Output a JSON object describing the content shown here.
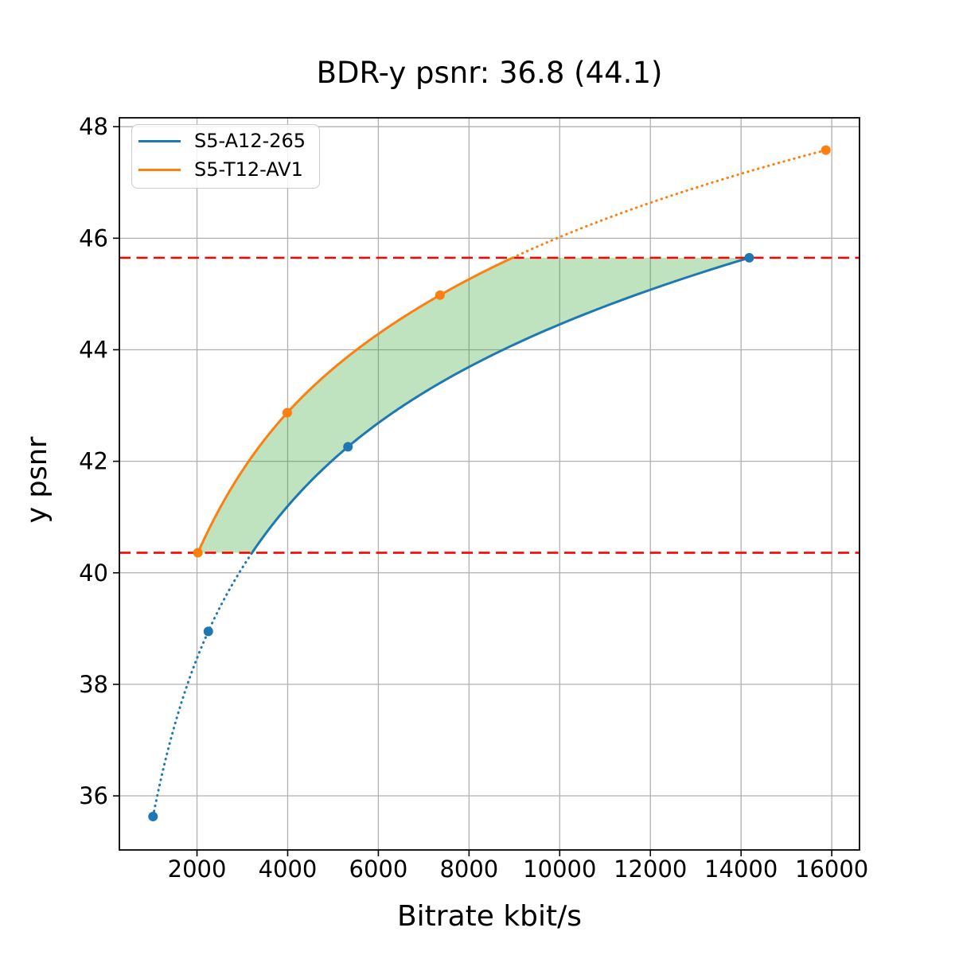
{
  "chart_data": {
    "type": "line",
    "title": "BDR-y psnr: 36.8 (44.1)",
    "xlabel": "Bitrate kbit/s",
    "ylabel": "y psnr",
    "xlim": [
      288,
      16612
    ],
    "ylim": [
      35.03,
      48.16
    ],
    "xticks": [
      2000,
      4000,
      6000,
      8000,
      10000,
      12000,
      14000,
      16000
    ],
    "yticks": [
      36,
      38,
      40,
      42,
      44,
      46,
      48
    ],
    "grid": true,
    "grid_color": "#b0b0b0",
    "background_color": "#ffffff",
    "legend_position": "upper-left",
    "series": [
      {
        "name": "S5-A12-265",
        "color": "#1f77b4",
        "marker": "circle",
        "x": [
          1030,
          2250,
          5330,
          14180
        ],
        "y": [
          35.63,
          38.95,
          42.26,
          45.65
        ]
      },
      {
        "name": "S5-T12-AV1",
        "color": "#ff7f0e",
        "marker": "circle",
        "x": [
          2020,
          3990,
          7360,
          15870
        ],
        "y": [
          40.36,
          42.87,
          44.98,
          47.58
        ]
      }
    ],
    "line_style_rule": "solid inside overlap psnr range, dotted outside",
    "interpolation": "monotone cubic over log bitrate",
    "ref_lines": {
      "values": [
        40.36,
        45.65
      ],
      "color": "#ff0000",
      "style": "dashed"
    },
    "shaded_region": {
      "between": [
        "S5-T12-AV1",
        "S5-A12-265"
      ],
      "psnr_range": [
        40.36,
        45.65
      ],
      "color": "#2ca02c",
      "opacity": 0.3
    }
  }
}
